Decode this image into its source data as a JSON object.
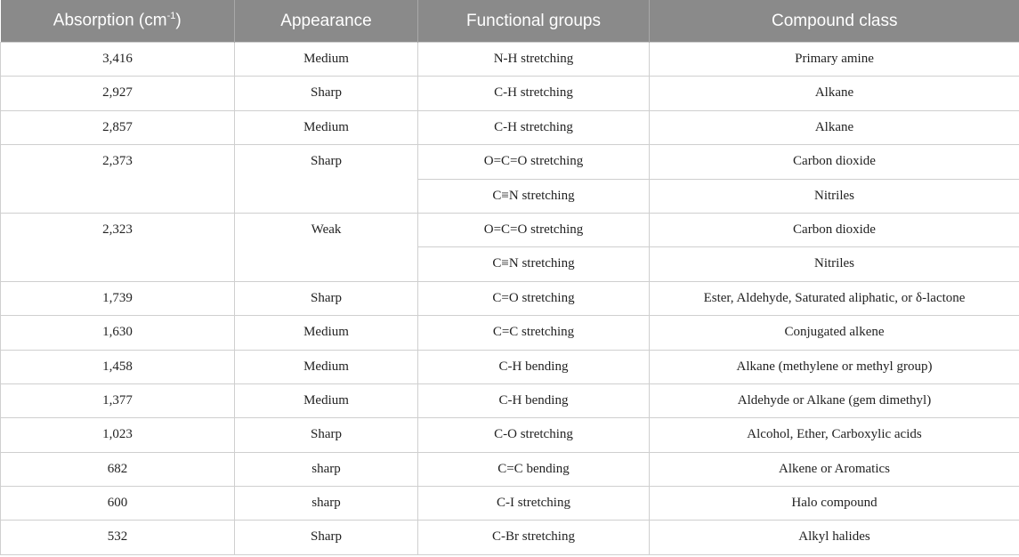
{
  "table": {
    "headers": {
      "absorption": "Absorption (cm",
      "absorption_sup": "-1",
      "absorption_close": ")",
      "appearance": "Appearance",
      "functional_groups": "Functional groups",
      "compound_class": "Compound class"
    },
    "rows": [
      {
        "absorption": "3,416",
        "appearance": "Medium",
        "groups": [
          {
            "group": "N-H stretching",
            "class": "Primary amine"
          }
        ]
      },
      {
        "absorption": "2,927",
        "appearance": "Sharp",
        "groups": [
          {
            "group": "C-H stretching",
            "class": "Alkane"
          }
        ]
      },
      {
        "absorption": "2,857",
        "appearance": "Medium",
        "groups": [
          {
            "group": "C-H stretching",
            "class": "Alkane"
          }
        ]
      },
      {
        "absorption": "2,373",
        "appearance": "Sharp",
        "groups": [
          {
            "group": "O=C=O stretching",
            "class": "Carbon dioxide"
          },
          {
            "group": "C≡N stretching",
            "class": "Nitriles"
          }
        ]
      },
      {
        "absorption": "2,323",
        "appearance": "Weak",
        "groups": [
          {
            "group": "O=C=O stretching",
            "class": "Carbon dioxide"
          },
          {
            "group": "C≡N stretching",
            "class": "Nitriles"
          }
        ]
      },
      {
        "absorption": "1,739",
        "appearance": "Sharp",
        "groups": [
          {
            "group": "C=O stretching",
            "class": "Ester, Aldehyde, Saturated aliphatic, or δ-lactone"
          }
        ]
      },
      {
        "absorption": "1,630",
        "appearance": "Medium",
        "groups": [
          {
            "group": "C=C stretching",
            "class": "Conjugated alkene"
          }
        ]
      },
      {
        "absorption": "1,458",
        "appearance": "Medium",
        "groups": [
          {
            "group": "C-H bending",
            "class": "Alkane (methylene or methyl group)"
          }
        ]
      },
      {
        "absorption": "1,377",
        "appearance": "Medium",
        "groups": [
          {
            "group": "C-H bending",
            "class": "Aldehyde or Alkane (gem dimethyl)"
          }
        ]
      },
      {
        "absorption": "1,023",
        "appearance": "Sharp",
        "groups": [
          {
            "group": "C-O stretching",
            "class": "Alcohol, Ether, Carboxylic acids"
          }
        ]
      },
      {
        "absorption": "682",
        "appearance": "sharp",
        "groups": [
          {
            "group": "C=C bending",
            "class": "Alkene or Aromatics"
          }
        ]
      },
      {
        "absorption": "600",
        "appearance": "sharp",
        "groups": [
          {
            "group": "C-I stretching",
            "class": "Halo compound"
          }
        ]
      },
      {
        "absorption": "532",
        "appearance": "Sharp",
        "groups": [
          {
            "group": "C-Br stretching",
            "class": "Alkyl halides"
          }
        ]
      }
    ]
  }
}
